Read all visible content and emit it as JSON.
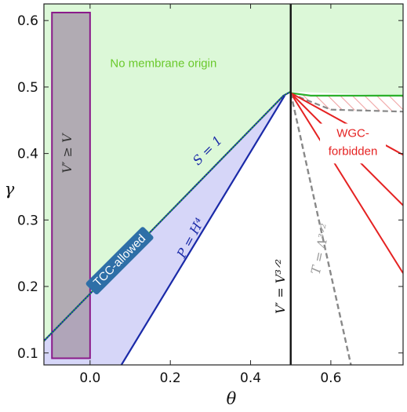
{
  "chart_data": {
    "type": "area",
    "xlabel": "θ",
    "ylabel": "γ",
    "xlim": [
      -0.115,
      0.78
    ],
    "ylim": [
      0.082,
      0.625
    ],
    "x_ticks": [
      {
        "value": 0.0,
        "label": "0.0"
      },
      {
        "value": 0.2,
        "label": "0.2"
      },
      {
        "value": 0.4,
        "label": "0.4"
      },
      {
        "value": 0.6,
        "label": "0.6"
      }
    ],
    "y_ticks": [
      {
        "value": 0.1,
        "label": "0.1"
      },
      {
        "value": 0.2,
        "label": "0.2"
      },
      {
        "value": 0.3,
        "label": "0.3"
      },
      {
        "value": 0.4,
        "label": "0.4"
      },
      {
        "value": 0.5,
        "label": "0.5"
      },
      {
        "value": 0.6,
        "label": "0.6"
      }
    ],
    "colors": {
      "no_membrane_fill": "#dcf8d8",
      "tcc_fill": "#d6d6f8",
      "rect_fill": "#a79aab",
      "rect_stroke": "#8a1a8a",
      "s_line": "#2bb02b",
      "p_line": "#1a2aa8",
      "wgc": "#e52222",
      "t_line": "#888888",
      "vertical": "#111111"
    },
    "regions": {
      "no_membrane": {
        "label": "No membrane origin",
        "color": "#6ac92c"
      },
      "tcc": {
        "label": "TCC-allowed",
        "color": "#ffffff",
        "bg": "#2e6fa7"
      },
      "wgc": {
        "label": "WGC-\nforbidden",
        "color": "#e52222"
      },
      "rect": {
        "label": "V′ ≥ V",
        "theta_range": [
          -0.095,
          0.0
        ],
        "gamma_range": [
          0.092,
          0.612
        ]
      }
    },
    "curves": {
      "s_equals_1": {
        "label": "S = 1",
        "points": [
          [
            -0.115,
            0.118
          ],
          [
            0.482,
            0.487
          ],
          [
            0.5,
            0.493
          ]
        ]
      },
      "p_equals_H4": {
        "label": "P = H⁴",
        "points": [
          [
            0.078,
            0.082
          ],
          [
            0.485,
            0.487
          ]
        ]
      },
      "t_equals_lambda": {
        "label": "T = Λ³ᐟ²",
        "points": [
          [
            0.5,
            0.491
          ],
          [
            0.65,
            0.082
          ]
        ]
      },
      "v_prime_vertical": {
        "label": "V′ = V³ᐟ²",
        "x": 0.5
      },
      "wgc_upper": {
        "points": [
          [
            0.5,
            0.491
          ],
          [
            0.55,
            0.487
          ],
          [
            0.78,
            0.487
          ]
        ]
      },
      "wgc_dashed": {
        "points": [
          [
            0.5,
            0.49
          ],
          [
            0.6,
            0.466
          ],
          [
            0.78,
            0.463
          ]
        ]
      },
      "wgc_line1": {
        "points": [
          [
            0.5,
            0.491
          ],
          [
            0.78,
            0.398
          ]
        ]
      },
      "wgc_line2": {
        "points": [
          [
            0.5,
            0.491
          ],
          [
            0.78,
            0.22
          ]
        ]
      },
      "wgc_line3": {
        "points": [
          [
            0.5,
            0.491
          ],
          [
            0.78,
            0.322
          ]
        ]
      }
    }
  }
}
